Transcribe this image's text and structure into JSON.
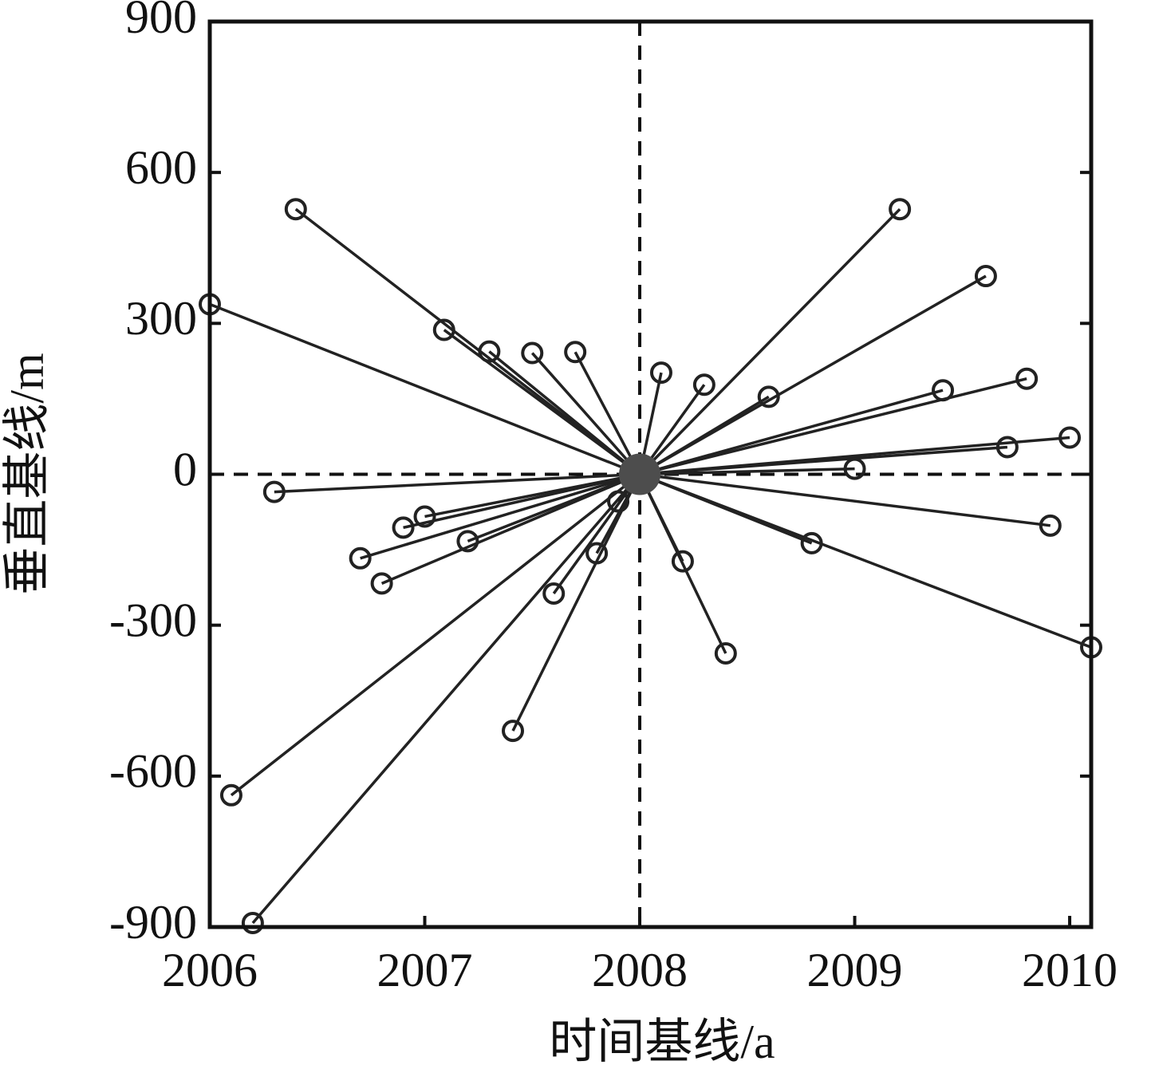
{
  "chart_data": {
    "type": "baseline",
    "x_label": "时间基线/a",
    "y_label": "垂直基线/m",
    "xlim": [
      2006,
      2010.1
    ],
    "ylim": [
      -900,
      900
    ],
    "xticks": [
      2006,
      2007,
      2008,
      2009,
      2010
    ],
    "yticks": [
      -900,
      -600,
      -300,
      0,
      300,
      600,
      900
    ],
    "color": "#222222",
    "master_color": "#4d4d4d",
    "master": {
      "x": 2008,
      "y": 0
    },
    "x": [
      2006.4,
      2006.0,
      2007.09,
      2007.3,
      2007.5,
      2007.7,
      2008.1,
      2008.3,
      2008.6,
      2009.21,
      2009.61,
      2009.41,
      2009.8,
      2009.71,
      2010.0,
      2009.0,
      2006.3,
      2007.0,
      2006.9,
      2006.7,
      2007.2,
      2006.8,
      2007.8,
      2007.6,
      2007.9,
      2007.41,
      2006.1,
      2006.2,
      2008.2,
      2008.4,
      2008.8,
      2009.91,
      2010.1
    ],
    "y": [
      527,
      338,
      287,
      244,
      241,
      243,
      202,
      178,
      154,
      527,
      394,
      167,
      190,
      54,
      73,
      11,
      -35,
      -84,
      -106,
      -167,
      -133,
      -217,
      -157,
      -237,
      -54,
      -510,
      -638,
      -892,
      -173,
      -356,
      -137,
      -102,
      -344
    ]
  }
}
